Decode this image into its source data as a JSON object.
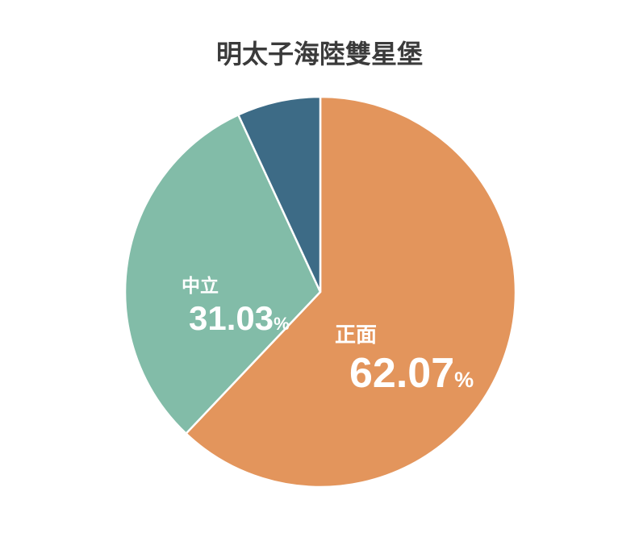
{
  "page": {
    "background_color": "#ffffff"
  },
  "chart_data": {
    "type": "pie",
    "title": "明太子海陸雙星堡",
    "title_color": "#3b3b3b",
    "label_color": "#ffffff",
    "legend_position": "none",
    "start_angle_deg": 0,
    "direction": "clockwise",
    "separator_color": "#ffffff",
    "slices": [
      {
        "label": "正面",
        "value": 62.07,
        "display_value": "62.07",
        "percent_suffix": "%",
        "color": "#e3955c",
        "label_visible": true
      },
      {
        "label": "中立",
        "value": 31.03,
        "display_value": "31.03",
        "percent_suffix": "%",
        "color": "#82bca8",
        "label_visible": true
      },
      {
        "label": "",
        "value": 6.9,
        "display_value": "",
        "percent_suffix": "",
        "color": "#3d6b86",
        "label_visible": false
      }
    ]
  }
}
